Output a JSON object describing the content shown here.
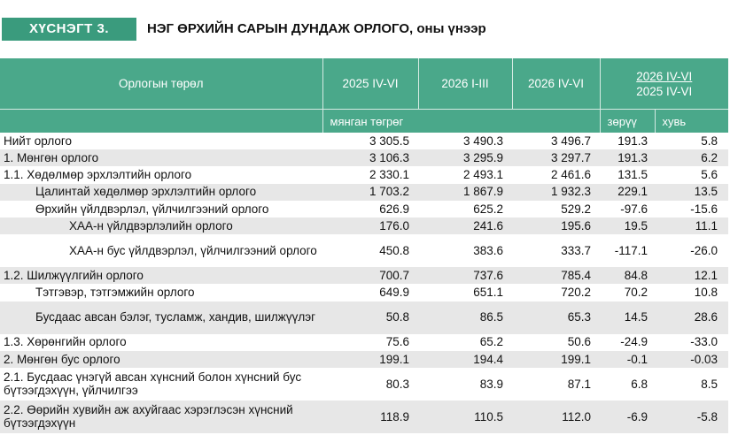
{
  "header": {
    "tag": "ХҮСНЭГТ 3.",
    "title": "НЭГ ӨРХИЙН САРЫН ДУНДАЖ ОРЛОГО, ",
    "title_suffix": "оны үнээр"
  },
  "table": {
    "col_category": "Орлогын төрөл",
    "col_p1": "2025 IV-VI",
    "col_p2": "2026 I-III",
    "col_p3": "2026 IV-VI",
    "col_ratio_top": "2026 IV-VI",
    "col_ratio_bottom": "2025 IV-VI",
    "unit": "мянган төгрөг",
    "col_change": "зөрүү",
    "col_percent": "хувь",
    "rows": [
      {
        "label": "Нийт орлого",
        "v1": "3 305.5",
        "v2": "3 490.3",
        "v3": "3 496.7",
        "chg": "191.3",
        "pct": "5.8"
      },
      {
        "label": "1. Мөнгөн орлого",
        "v1": "3 106.3",
        "v2": "3 295.9",
        "v3": "3 297.7",
        "chg": "191.3",
        "pct": "6.2"
      },
      {
        "label": "1.1. Хөдөлмөр эрхлэлтийн орлого",
        "v1": "2 330.1",
        "v2": "2 493.1",
        "v3": "2 461.6",
        "chg": "131.5",
        "pct": "5.6"
      },
      {
        "label": "Цалинтай хөдөлмөр эрхлэлтийн орлого",
        "v1": "1 703.2",
        "v2": "1 867.9",
        "v3": "1 932.3",
        "chg": "229.1",
        "pct": "13.5"
      },
      {
        "label": "Өрхийн үйлдвэрлэл, үйлчилгээний орлого",
        "v1": "626.9",
        "v2": "625.2",
        "v3": "529.2",
        "chg": "-97.6",
        "pct": "-15.6"
      },
      {
        "label": "ХАА-н үйлдвэрлэлийн орлого",
        "v1": "176.0",
        "v2": "241.6",
        "v3": "195.6",
        "chg": "19.5",
        "pct": "11.1"
      },
      {
        "label": "ХАА-н бус үйлдвэрлэл, үйлчилгээний орлого",
        "v1": "450.8",
        "v2": "383.6",
        "v3": "333.7",
        "chg": "-117.1",
        "pct": "-26.0"
      },
      {
        "label": "1.2. Шилжүүлгийн орлого",
        "v1": "700.7",
        "v2": "737.6",
        "v3": "785.4",
        "chg": "84.8",
        "pct": "12.1"
      },
      {
        "label": "Тэтгэвэр, тэтгэмжийн орлого",
        "v1": "649.9",
        "v2": "651.1",
        "v3": "720.2",
        "chg": "70.2",
        "pct": "10.8"
      },
      {
        "label": "Бусдаас авсан бэлэг, тусламж, хандив, шилжүүлэг",
        "v1": "50.8",
        "v2": "86.5",
        "v3": "65.3",
        "chg": "14.5",
        "pct": "28.6"
      },
      {
        "label": "1.3. Хөрөнгийн орлого",
        "v1": "75.6",
        "v2": "65.2",
        "v3": "50.6",
        "chg": "-24.9",
        "pct": "-33.0"
      },
      {
        "label": "2. Мөнгөн бус орлого",
        "v1": "199.1",
        "v2": "194.4",
        "v3": "199.1",
        "chg": "-0.1",
        "pct": "-0.03"
      },
      {
        "label": "2.1. Бусдаас үнэгүй авсан хүнсний болон хүнсний бус бүтээгдэхүүн, үйлчилгээ",
        "v1": "80.3",
        "v2": "83.9",
        "v3": "87.1",
        "chg": "6.8",
        "pct": "8.5"
      },
      {
        "label": "2.2. Өөрийн хувийн аж ахуйгаас хэрэглэсэн хүнсний бүтээгдэхүүн",
        "v1": "118.9",
        "v2": "110.5",
        "v3": "112.0",
        "chg": "-6.9",
        "pct": "-5.8"
      }
    ]
  }
}
